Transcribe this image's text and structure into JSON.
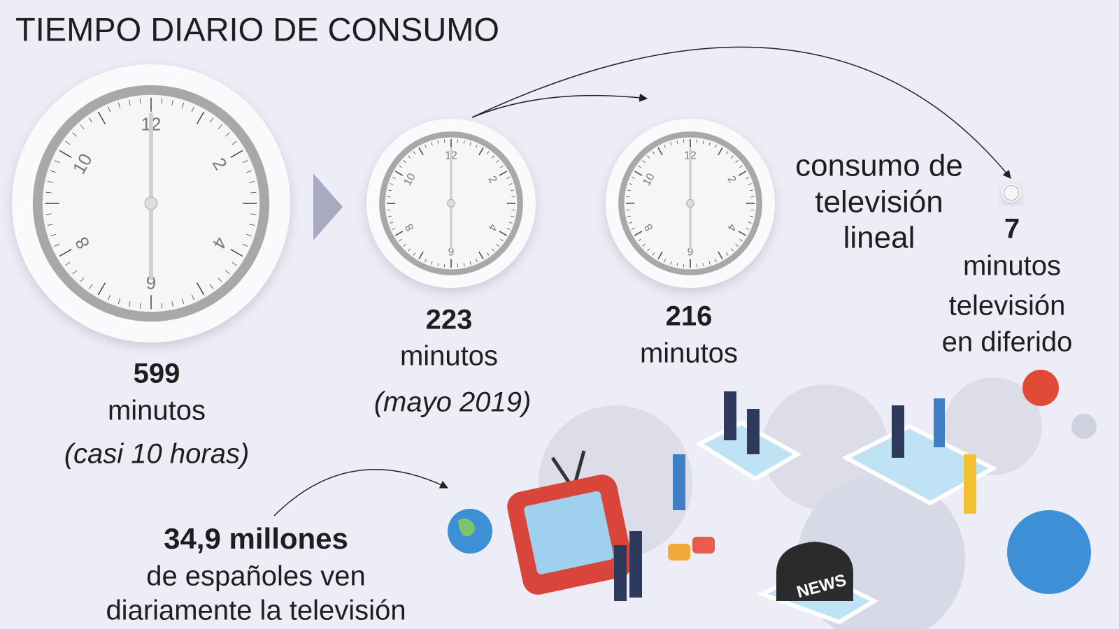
{
  "header": {
    "title": "TIEMPO DIARIO DE CONSUMO"
  },
  "clock_numerals": [
    "12",
    "2",
    "4",
    "6",
    "8",
    "10"
  ],
  "totals": [
    {
      "value": "599",
      "unit": "minutos",
      "note": "(casi 10 horas)"
    },
    {
      "value": "223",
      "unit": "minutos",
      "note": "(mayo 2019)"
    },
    {
      "value": "216",
      "unit": "minutos"
    }
  ],
  "linear_label": [
    "consumo de",
    "televisión",
    "lineal"
  ],
  "deferred": {
    "value": "7",
    "lines": [
      "minutos",
      "televisión",
      "en diferido"
    ]
  },
  "audience": {
    "value": "34,9 millones",
    "lines": [
      "de españoles ven",
      "diariamente la televisión"
    ]
  },
  "illustration": {
    "news": "NEWS"
  }
}
